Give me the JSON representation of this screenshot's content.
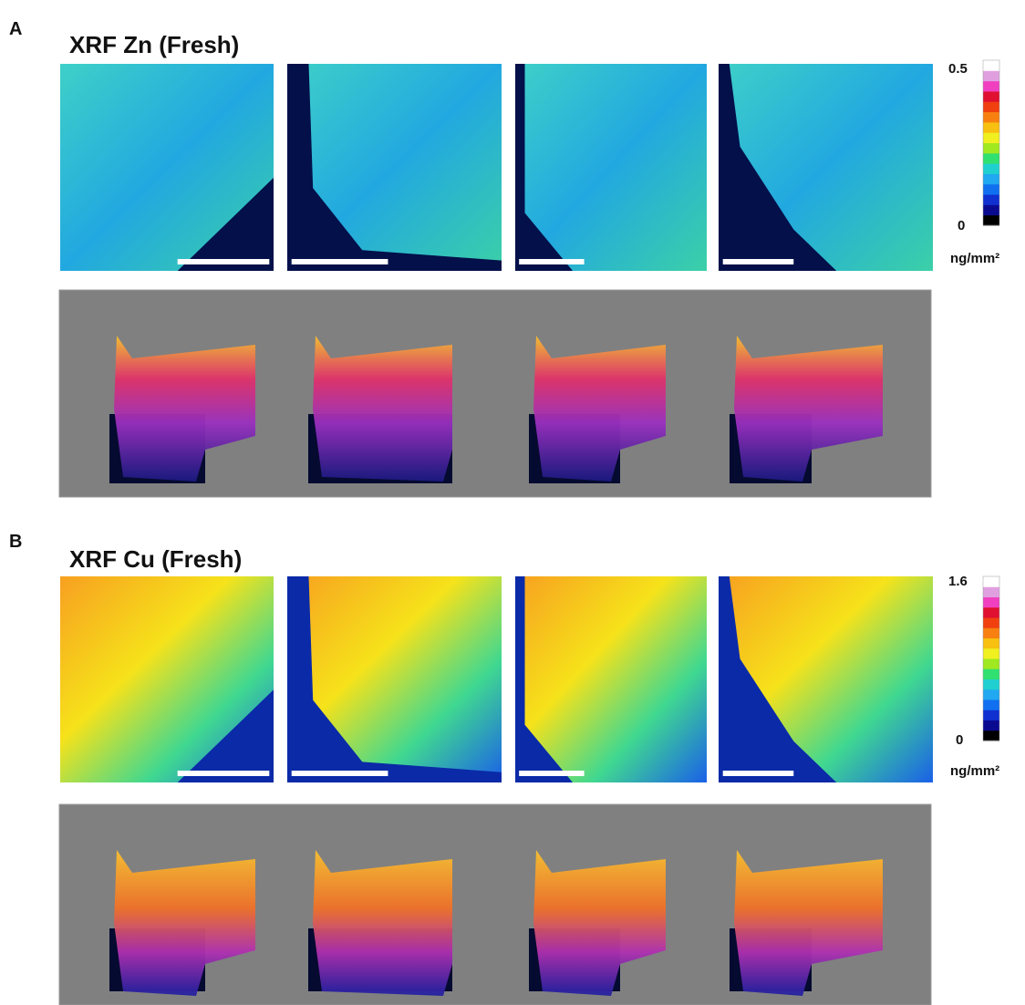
{
  "panels": [
    {
      "label": "A",
      "title": "XRF Zn (Fresh)",
      "colorbar": {
        "max_label": "0.5",
        "min_label": "0",
        "unit": "ng/mm²"
      }
    },
    {
      "label": "B",
      "title": "XRF Cu (Fresh)",
      "colorbar": {
        "max_label": "1.6",
        "min_label": "0",
        "unit": "ng/mm²"
      }
    }
  ]
}
